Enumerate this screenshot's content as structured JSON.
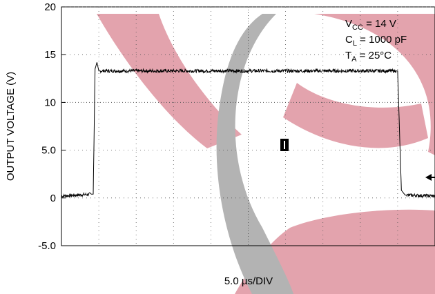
{
  "chart_data": {
    "type": "line",
    "ylabel": "OUTPUT VOLTAGE (V)",
    "xlabel_prefix": "5.0 ",
    "xlabel_unit": "µs/DIV",
    "ylim": [
      -5,
      20
    ],
    "y_ticks": [
      "20",
      "15",
      "10",
      "5.0",
      "0",
      "-5.0"
    ],
    "x_divisions": 10,
    "grid": true,
    "conditions": {
      "vcc": {
        "main": "V",
        "sub": "CC",
        "rest": " = 14 V"
      },
      "cl": {
        "main": "C",
        "sub": "L",
        "rest": " = 1000 pF"
      },
      "ta": {
        "main": "T",
        "sub": "A",
        "rest": " = 25°C"
      }
    },
    "series": [
      {
        "x_div": [
          0,
          0.85,
          0.9,
          0.95,
          1.0,
          9.0,
          9.05,
          9.1,
          9.2,
          10.0
        ],
        "y": [
          0.2,
          0.4,
          13.5,
          14.2,
          13.3,
          13.3,
          7.0,
          0.8,
          0.3,
          0.2
        ]
      }
    ],
    "colors": {
      "trace": "#000000",
      "grid": "#555555",
      "watermark_red": "#e3a3ad",
      "watermark_gray": "#b3b3b3"
    }
  }
}
